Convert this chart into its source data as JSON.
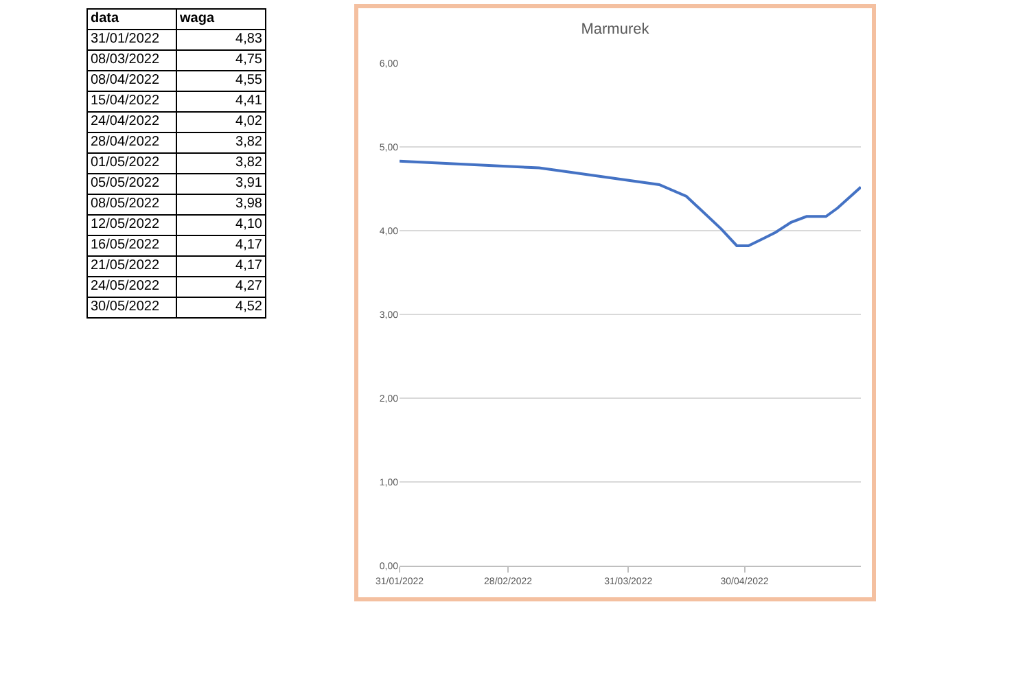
{
  "chart_data": [
    {
      "type": "other",
      "annotations": [
        "data",
        "waga",
        "31/01/2022",
        "4,83",
        "08/03/2022",
        "4,75",
        "08/04/2022",
        "4,55",
        "15/04/2022",
        "4,41",
        "24/04/2022",
        "4,02",
        "28/04/2022",
        "3,82",
        "01/05/2022",
        "3,82",
        "05/05/2022",
        "3,91",
        "08/05/2022",
        "3,98",
        "12/05/2022",
        "4,10",
        "16/05/2022",
        "4,17",
        "21/05/2022",
        "4,17",
        "24/05/2022",
        "4,27",
        "30/05/2022",
        "4,52"
      ]
    },
    {
      "type": "line",
      "title": "Marmurek",
      "x": [
        "2022-01-31",
        "2022-03-08",
        "2022-04-08",
        "2022-04-15",
        "2022-04-24",
        "2022-04-28",
        "2022-05-01",
        "2022-05-05",
        "2022-05-08",
        "2022-05-12",
        "2022-05-16",
        "2022-05-21",
        "2022-05-24",
        "2022-05-30"
      ],
      "series": [
        {
          "color": "#4472c4",
          "values": [
            4.83,
            4.75,
            4.55,
            4.41,
            4.02,
            3.82,
            3.82,
            3.91,
            3.98,
            4.1,
            4.17,
            4.17,
            4.27,
            4.52
          ]
        }
      ],
      "xlim": [
        "2022-01-31",
        "2022-05-30"
      ],
      "xticks": [
        {
          "value": "2022-01-31",
          "label": "31/01/2022"
        },
        {
          "value": "2022-02-28",
          "label": "28/02/2022"
        },
        {
          "value": "2022-03-31",
          "label": "31/03/2022"
        },
        {
          "value": "2022-04-30",
          "label": "30/04/2022"
        }
      ],
      "ylim": [
        0,
        6
      ],
      "yticks": [
        {
          "value": 0,
          "label": "0,00"
        },
        {
          "value": 1,
          "label": "1,00"
        },
        {
          "value": 2,
          "label": "2,00"
        },
        {
          "value": 3,
          "label": "3,00"
        },
        {
          "value": 4,
          "label": "4,00"
        },
        {
          "value": 5,
          "label": "5,00"
        },
        {
          "value": 6,
          "label": "6,00"
        }
      ],
      "grid": "y",
      "marker": "none",
      "line_style": "solid"
    }
  ]
}
